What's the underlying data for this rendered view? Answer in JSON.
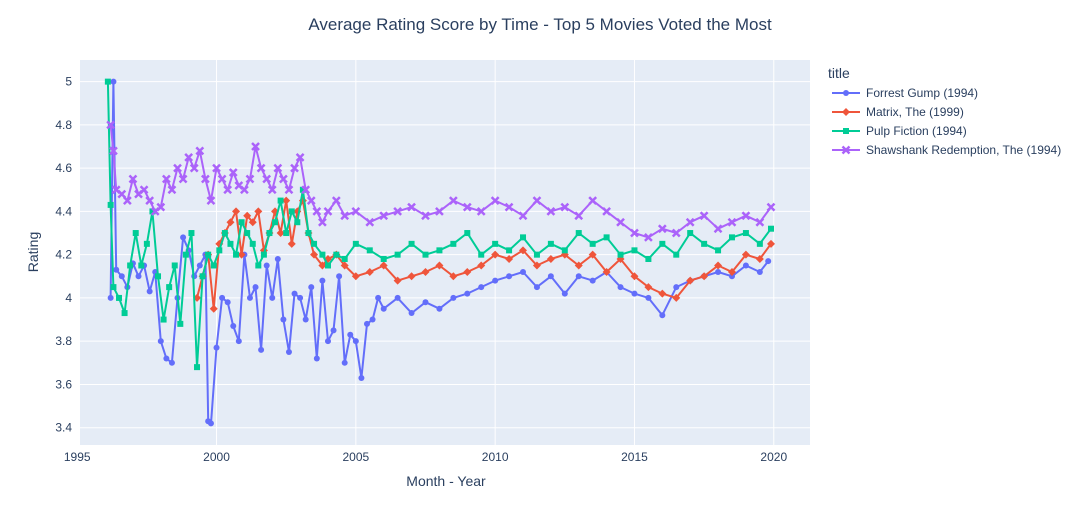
{
  "chart_data": {
    "type": "line",
    "title": "Average Rating Score by Time - Top 5 Movies Voted the Most",
    "xlabel": "Month - Year",
    "ylabel": "Rating",
    "xlim": [
      1995.1,
      2021.3
    ],
    "ylim": [
      3.32,
      5.1
    ],
    "x_ticks": [
      1995,
      2000,
      2005,
      2010,
      2015,
      2020
    ],
    "y_ticks": [
      3.4,
      3.6,
      3.8,
      4.0,
      4.2,
      4.4,
      4.6,
      4.8,
      5.0
    ],
    "y_tick_labels": [
      "3.4",
      "3.6",
      "3.8",
      "4",
      "4.2",
      "4.4",
      "4.6",
      "4.8",
      "5"
    ],
    "grid": true,
    "legend_title": "title",
    "legend_position": "right",
    "plot_bgcolor": "#E5ECF6",
    "series": [
      {
        "name": "Forrest Gump (1994)",
        "color": "#636EFA",
        "marker": "circle",
        "x": [
          1996.2,
          1996.3,
          1996.4,
          1996.6,
          1996.8,
          1997.0,
          1997.2,
          1997.4,
          1997.6,
          1997.8,
          1998.0,
          1998.2,
          1998.4,
          1998.6,
          1998.8,
          1999.0,
          1999.2,
          1999.4,
          1999.6,
          1999.7,
          1999.8,
          2000.0,
          2000.2,
          2000.4,
          2000.6,
          2000.8,
          2001.0,
          2001.2,
          2001.4,
          2001.6,
          2001.8,
          2002.0,
          2002.2,
          2002.4,
          2002.6,
          2002.8,
          2003.0,
          2003.2,
          2003.4,
          2003.6,
          2003.8,
          2004.0,
          2004.2,
          2004.4,
          2004.6,
          2004.8,
          2005.0,
          2005.2,
          2005.4,
          2005.6,
          2005.8,
          2006.0,
          2006.5,
          2007.0,
          2007.5,
          2008.0,
          2008.5,
          2009.0,
          2009.5,
          2010.0,
          2010.5,
          2011.0,
          2011.5,
          2012.0,
          2012.5,
          2013.0,
          2013.5,
          2014.0,
          2014.5,
          2015.0,
          2015.5,
          2016.0,
          2016.5,
          2017.0,
          2017.5,
          2018.0,
          2018.5,
          2019.0,
          2019.5,
          2019.8
        ],
        "y": [
          4.0,
          5.0,
          4.13,
          4.1,
          4.05,
          4.16,
          4.1,
          4.15,
          4.03,
          4.12,
          3.8,
          3.72,
          3.7,
          4.0,
          4.28,
          4.22,
          4.1,
          4.15,
          4.2,
          3.43,
          3.42,
          3.77,
          4.0,
          3.98,
          3.87,
          3.8,
          4.2,
          4.0,
          4.05,
          3.76,
          4.15,
          4.0,
          4.18,
          3.9,
          3.75,
          4.02,
          4.0,
          3.9,
          4.05,
          3.72,
          4.08,
          3.8,
          3.85,
          4.1,
          3.7,
          3.83,
          3.8,
          3.63,
          3.88,
          3.9,
          4.0,
          3.95,
          4.0,
          3.93,
          3.98,
          3.95,
          4.0,
          4.02,
          4.05,
          4.08,
          4.1,
          4.12,
          4.05,
          4.1,
          4.02,
          4.1,
          4.08,
          4.12,
          4.05,
          4.02,
          4.0,
          3.92,
          4.05,
          4.08,
          4.1,
          4.12,
          4.1,
          4.15,
          4.12,
          4.17
        ]
      },
      {
        "name": "Matrix, The (1999)",
        "color": "#EF553B",
        "marker": "diamond",
        "x": [
          1999.3,
          1999.5,
          1999.7,
          1999.9,
          2000.1,
          2000.3,
          2000.5,
          2000.7,
          2000.9,
          2001.1,
          2001.3,
          2001.5,
          2001.7,
          2001.9,
          2002.1,
          2002.3,
          2002.5,
          2002.7,
          2002.9,
          2003.1,
          2003.3,
          2003.5,
          2003.8,
          2004.0,
          2004.3,
          2004.6,
          2005.0,
          2005.5,
          2006.0,
          2006.5,
          2007.0,
          2007.5,
          2008.0,
          2008.5,
          2009.0,
          2009.5,
          2010.0,
          2010.5,
          2011.0,
          2011.5,
          2012.0,
          2012.5,
          2013.0,
          2013.5,
          2014.0,
          2014.5,
          2015.0,
          2015.5,
          2016.0,
          2016.5,
          2017.0,
          2017.5,
          2018.0,
          2018.5,
          2019.0,
          2019.5,
          2019.9
        ],
        "y": [
          4.0,
          4.1,
          4.2,
          3.95,
          4.25,
          4.3,
          4.35,
          4.4,
          4.2,
          4.38,
          4.35,
          4.4,
          4.22,
          4.3,
          4.4,
          4.3,
          4.45,
          4.25,
          4.4,
          4.45,
          4.3,
          4.2,
          4.15,
          4.18,
          4.2,
          4.15,
          4.1,
          4.12,
          4.15,
          4.08,
          4.1,
          4.12,
          4.15,
          4.1,
          4.12,
          4.15,
          4.2,
          4.18,
          4.22,
          4.15,
          4.18,
          4.2,
          4.15,
          4.2,
          4.12,
          4.18,
          4.1,
          4.05,
          4.02,
          4.0,
          4.08,
          4.1,
          4.15,
          4.12,
          4.2,
          4.18,
          4.25
        ]
      },
      {
        "name": "Pulp Fiction (1994)",
        "color": "#00CC96",
        "marker": "square",
        "x": [
          1996.1,
          1996.2,
          1996.3,
          1996.5,
          1996.7,
          1996.9,
          1997.1,
          1997.3,
          1997.5,
          1997.7,
          1997.9,
          1998.1,
          1998.3,
          1998.5,
          1998.7,
          1998.9,
          1999.1,
          1999.3,
          1999.5,
          1999.7,
          1999.9,
          2000.1,
          2000.3,
          2000.5,
          2000.7,
          2000.9,
          2001.1,
          2001.3,
          2001.5,
          2001.7,
          2001.9,
          2002.1,
          2002.3,
          2002.5,
          2002.7,
          2002.9,
          2003.1,
          2003.3,
          2003.5,
          2003.8,
          2004.0,
          2004.3,
          2004.6,
          2005.0,
          2005.5,
          2006.0,
          2006.5,
          2007.0,
          2007.5,
          2008.0,
          2008.5,
          2009.0,
          2009.5,
          2010.0,
          2010.5,
          2011.0,
          2011.5,
          2012.0,
          2012.5,
          2013.0,
          2013.5,
          2014.0,
          2014.5,
          2015.0,
          2015.5,
          2016.0,
          2016.5,
          2017.0,
          2017.5,
          2018.0,
          2018.5,
          2019.0,
          2019.5,
          2019.9
        ],
        "y": [
          5.0,
          4.43,
          4.05,
          4.0,
          3.93,
          4.15,
          4.3,
          4.15,
          4.25,
          4.4,
          4.1,
          3.9,
          4.05,
          4.15,
          3.88,
          4.2,
          4.3,
          3.68,
          4.1,
          4.2,
          4.15,
          4.22,
          4.3,
          4.25,
          4.2,
          4.35,
          4.3,
          4.25,
          4.15,
          4.2,
          4.3,
          4.35,
          4.45,
          4.3,
          4.4,
          4.35,
          4.5,
          4.3,
          4.25,
          4.2,
          4.15,
          4.2,
          4.18,
          4.25,
          4.22,
          4.18,
          4.2,
          4.25,
          4.2,
          4.22,
          4.25,
          4.3,
          4.2,
          4.25,
          4.22,
          4.28,
          4.2,
          4.25,
          4.22,
          4.3,
          4.25,
          4.28,
          4.2,
          4.22,
          4.18,
          4.25,
          4.2,
          4.3,
          4.25,
          4.22,
          4.28,
          4.3,
          4.25,
          4.32
        ]
      },
      {
        "name": "Shawshank Redemption, The (1994)",
        "color": "#AB63FA",
        "marker": "x",
        "x": [
          1996.2,
          1996.3,
          1996.4,
          1996.6,
          1996.8,
          1997.0,
          1997.2,
          1997.4,
          1997.6,
          1997.8,
          1998.0,
          1998.2,
          1998.4,
          1998.6,
          1998.8,
          1999.0,
          1999.2,
          1999.4,
          1999.6,
          1999.8,
          2000.0,
          2000.2,
          2000.4,
          2000.6,
          2000.8,
          2001.0,
          2001.2,
          2001.4,
          2001.6,
          2001.8,
          2002.0,
          2002.2,
          2002.4,
          2002.6,
          2002.8,
          2003.0,
          2003.2,
          2003.4,
          2003.6,
          2003.8,
          2004.0,
          2004.3,
          2004.6,
          2005.0,
          2005.5,
          2006.0,
          2006.5,
          2007.0,
          2007.5,
          2008.0,
          2008.5,
          2009.0,
          2009.5,
          2010.0,
          2010.5,
          2011.0,
          2011.5,
          2012.0,
          2012.5,
          2013.0,
          2013.5,
          2014.0,
          2014.5,
          2015.0,
          2015.5,
          2016.0,
          2016.5,
          2017.0,
          2017.5,
          2018.0,
          2018.5,
          2019.0,
          2019.5,
          2019.9
        ],
        "y": [
          4.8,
          4.68,
          4.5,
          4.48,
          4.45,
          4.55,
          4.48,
          4.5,
          4.45,
          4.4,
          4.42,
          4.55,
          4.5,
          4.6,
          4.55,
          4.65,
          4.6,
          4.68,
          4.55,
          4.45,
          4.6,
          4.55,
          4.5,
          4.58,
          4.52,
          4.5,
          4.55,
          4.7,
          4.6,
          4.55,
          4.5,
          4.6,
          4.55,
          4.5,
          4.6,
          4.65,
          4.5,
          4.45,
          4.4,
          4.35,
          4.4,
          4.45,
          4.38,
          4.4,
          4.35,
          4.38,
          4.4,
          4.42,
          4.38,
          4.4,
          4.45,
          4.42,
          4.4,
          4.45,
          4.42,
          4.38,
          4.45,
          4.4,
          4.42,
          4.38,
          4.45,
          4.4,
          4.35,
          4.3,
          4.28,
          4.32,
          4.3,
          4.35,
          4.38,
          4.32,
          4.35,
          4.38,
          4.35,
          4.42
        ]
      }
    ]
  }
}
